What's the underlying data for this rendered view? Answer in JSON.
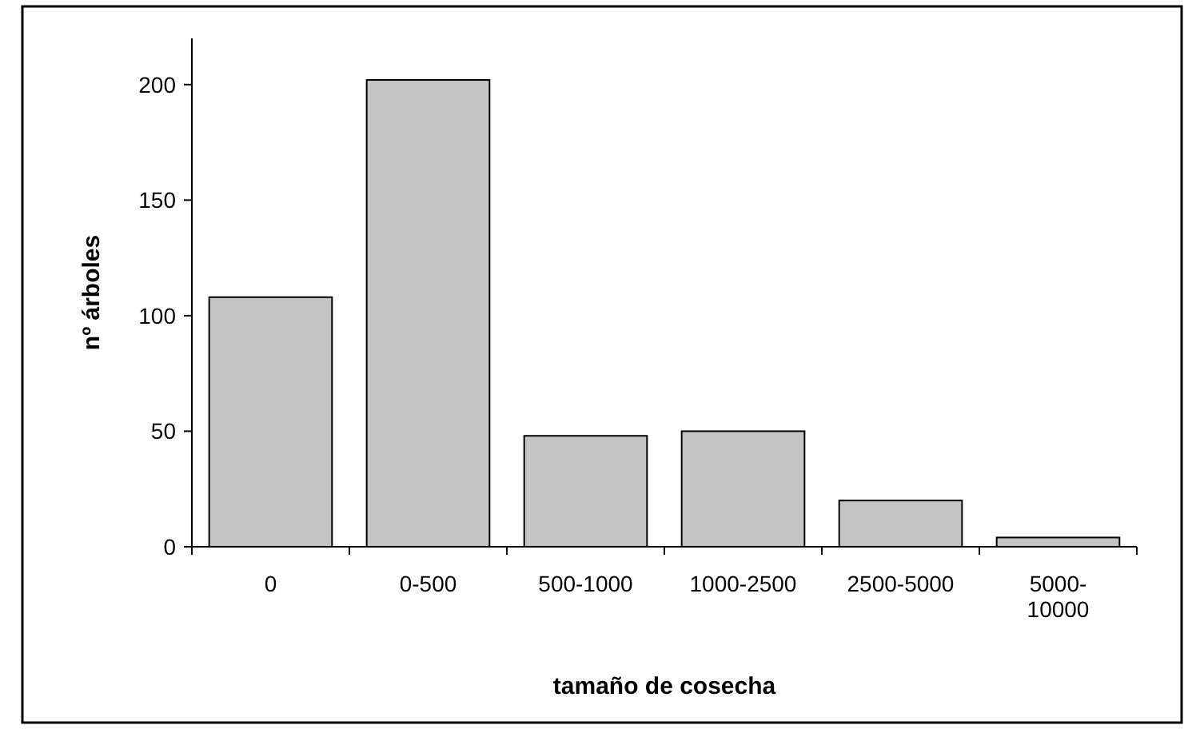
{
  "chart_data": {
    "type": "bar",
    "xlabel": "tamaño de cosecha",
    "ylabel": "nº árboles",
    "categories": [
      "0",
      "0-500",
      "500-1000",
      "1000-2500",
      "2500-5000",
      "5000-10000"
    ],
    "values": [
      108,
      202,
      48,
      50,
      20,
      4
    ],
    "color": "#c4c4c4",
    "ylim": [
      0,
      220
    ],
    "yticks": [
      0,
      50,
      100,
      150,
      200
    ],
    "grid": false
  }
}
